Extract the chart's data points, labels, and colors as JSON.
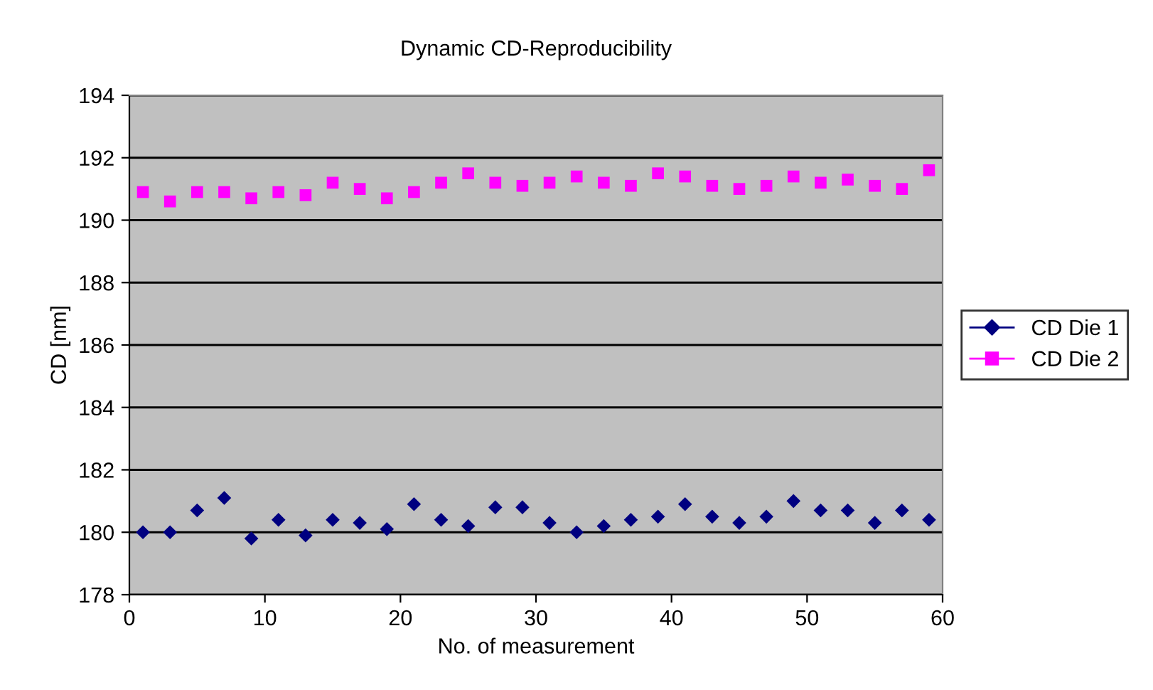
{
  "chart_data": {
    "type": "scatter",
    "title": "Dynamic CD-Reproducibility",
    "xlabel": "No. of measurement",
    "ylabel": "CD [nm]",
    "x": [
      1,
      3,
      5,
      7,
      9,
      11,
      13,
      15,
      17,
      19,
      21,
      23,
      25,
      27,
      29,
      31,
      33,
      35,
      37,
      39,
      41,
      43,
      45,
      47,
      49,
      51,
      53,
      55,
      57,
      59
    ],
    "series": [
      {
        "name": "CD Die 1",
        "color": "#000080",
        "marker": "diamond",
        "values": [
          180.0,
          180.0,
          180.7,
          181.1,
          179.8,
          180.4,
          179.9,
          180.4,
          180.3,
          180.1,
          180.9,
          180.4,
          180.2,
          180.8,
          180.8,
          180.3,
          180.0,
          180.2,
          180.4,
          180.5,
          180.9,
          180.5,
          180.3,
          180.5,
          181.0,
          180.7,
          180.7,
          180.3,
          180.7,
          180.4
        ]
      },
      {
        "name": "CD Die 2",
        "color": "#ff00ff",
        "marker": "square",
        "values": [
          190.9,
          190.6,
          190.9,
          190.9,
          190.7,
          190.9,
          190.8,
          191.2,
          191.0,
          190.7,
          190.9,
          191.2,
          191.5,
          191.2,
          191.1,
          191.2,
          191.4,
          191.2,
          191.1,
          191.5,
          191.4,
          191.1,
          191.0,
          191.1,
          191.4,
          191.2,
          191.3,
          191.1,
          191.0,
          191.6
        ]
      }
    ],
    "xlim": [
      0,
      60
    ],
    "xticks": [
      0,
      10,
      20,
      30,
      40,
      50,
      60
    ],
    "ylim": [
      178,
      194
    ],
    "yticks": [
      178,
      180,
      182,
      184,
      186,
      188,
      190,
      192,
      194
    ],
    "grid": "y",
    "legend": "right"
  }
}
